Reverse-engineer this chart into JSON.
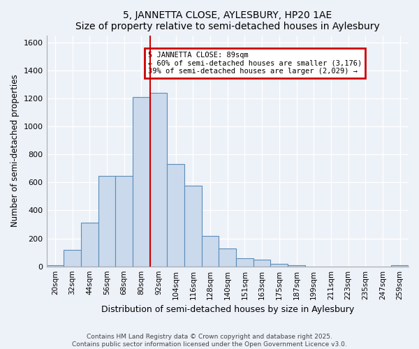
{
  "title": "5, JANNETTA CLOSE, AYLESBURY, HP20 1AE",
  "subtitle": "Size of property relative to semi-detached houses in Aylesbury",
  "xlabel": "Distribution of semi-detached houses by size in Aylesbury",
  "ylabel": "Number of semi-detached properties",
  "categories": [
    "20sqm",
    "32sqm",
    "44sqm",
    "56sqm",
    "68sqm",
    "80sqm",
    "92sqm",
    "104sqm",
    "116sqm",
    "128sqm",
    "140sqm",
    "151sqm",
    "163sqm",
    "175sqm",
    "187sqm",
    "199sqm",
    "211sqm",
    "223sqm",
    "235sqm",
    "247sqm",
    "259sqm"
  ],
  "values": [
    10,
    120,
    310,
    645,
    645,
    1210,
    1240,
    730,
    575,
    220,
    130,
    60,
    48,
    20,
    8,
    0,
    0,
    0,
    0,
    0,
    10
  ],
  "bar_color": "#cad9ec",
  "bar_edge_color": "#5b8db8",
  "vline_color": "#cc0000",
  "vline_x_index": 6,
  "annotation_title": "5 JANNETTA CLOSE: 89sqm",
  "annotation_line1": "← 60% of semi-detached houses are smaller (3,176)",
  "annotation_line2": "39% of semi-detached houses are larger (2,029) →",
  "annotation_box_color": "#cc0000",
  "ylim": [
    0,
    1650
  ],
  "yticks": [
    0,
    200,
    400,
    600,
    800,
    1000,
    1200,
    1400,
    1600
  ],
  "footnote1": "Contains HM Land Registry data © Crown copyright and database right 2025.",
  "footnote2": "Contains public sector information licensed under the Open Government Licence v3.0.",
  "bg_color": "#edf1f8",
  "plot_bg_color": "#edf1f8",
  "grid_color": "#ffffff"
}
